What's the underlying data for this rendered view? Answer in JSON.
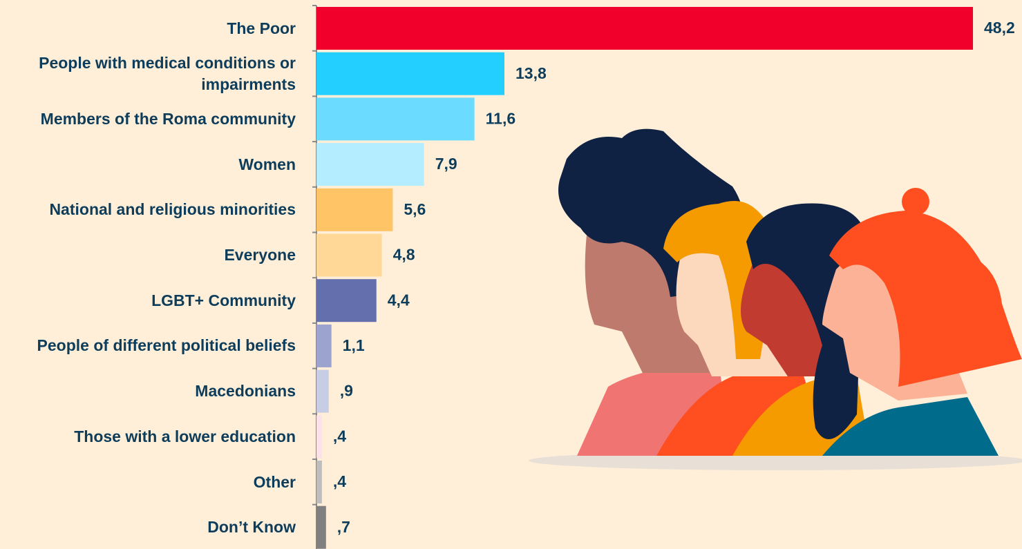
{
  "chart_data": {
    "type": "bar",
    "orientation": "horizontal",
    "categories": [
      "The Poor",
      "People with medical conditions or impairments",
      "Members of the Roma community",
      "Women",
      "National and religious minorities",
      "Everyone",
      "LGBT+ Community",
      "People of different political beliefs",
      "Macedonians",
      "Those with a lower education",
      "Other",
      "Don’t Know"
    ],
    "values": [
      48.2,
      13.8,
      11.6,
      7.9,
      5.6,
      4.8,
      4.4,
      1.1,
      0.9,
      0.4,
      0.4,
      0.7
    ],
    "value_labels": [
      "48,2",
      "13,8",
      "11,6",
      "7,9",
      "5,6",
      "4,8",
      "4,4",
      "1,1",
      ",9",
      ",4",
      ",4",
      ",7"
    ],
    "colors": [
      "#f0002a",
      "#22cfff",
      "#6bdcff",
      "#b3edff",
      "#ffc466",
      "#ffd898",
      "#6470ad",
      "#9da3cf",
      "#c8cde6",
      "#fde1ea",
      "#bdbdbd",
      "#808080"
    ]
  }
}
